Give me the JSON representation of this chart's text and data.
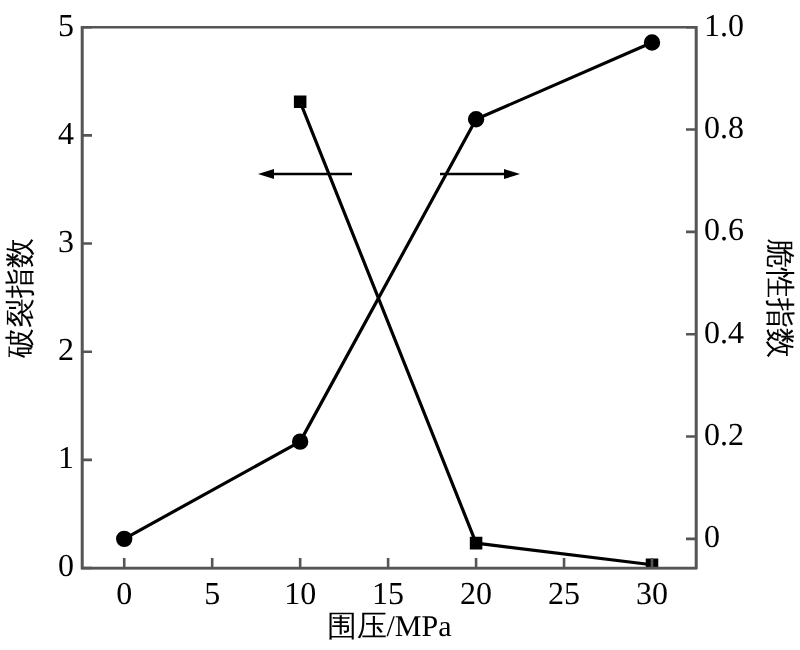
{
  "chart_data": {
    "type": "line",
    "xlabel": "围压/MPa",
    "ylabel": "破裂指数",
    "y2label": "脆性指数",
    "series": [
      {
        "color": "#000000",
        "marker": "square",
        "axis": "y",
        "x": [
          10,
          20,
          30
        ],
        "values": [
          4.31,
          0.23,
          0.03
        ]
      },
      {
        "color": "#000000",
        "marker": "circle",
        "axis": "y2",
        "x": [
          0,
          10,
          20,
          30
        ],
        "values": [
          0,
          0.19,
          0.82,
          0.97
        ]
      }
    ],
    "xlim": [
      -2.4,
      32.5
    ],
    "xticks": [
      0,
      5,
      10,
      15,
      20,
      25,
      30
    ],
    "ylim": [
      0,
      5
    ],
    "yticks": [
      0,
      1,
      2,
      3,
      4,
      5
    ],
    "y2lim": [
      -0.057,
      1
    ],
    "y2ticks": [
      0,
      0.2,
      0.4,
      0.6,
      {
        "value": 1,
        "label": "1.0"
      },
      {
        "value": 0.8,
        "label": "0.8"
      }
    ],
    "grid": false,
    "legend": false,
    "line_style": "solid"
  }
}
